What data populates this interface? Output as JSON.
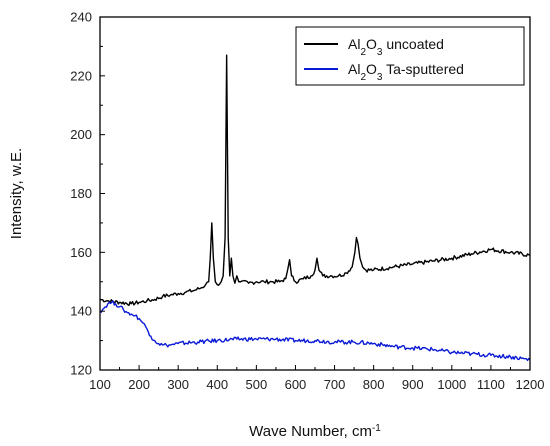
{
  "chart_data": {
    "type": "line",
    "xlabel": "Wave Number,  cm",
    "xlabel_superscript": "-1",
    "ylabel": "Intensity, w.E.",
    "xlim": [
      100,
      1200
    ],
    "ylim": [
      120,
      240
    ],
    "x_ticks": [
      100,
      200,
      300,
      400,
      500,
      600,
      700,
      800,
      900,
      1000,
      1100,
      1200
    ],
    "y_ticks": [
      120,
      140,
      160,
      180,
      200,
      220,
      240
    ],
    "grid": false,
    "legend_position": "top-right",
    "series": [
      {
        "name": "Al2O3 uncoated",
        "legend": {
          "base1": "Al",
          "sub1": "2",
          "base2": "O",
          "sub2": "3",
          "rest": " uncoated"
        },
        "color": "#000000",
        "x": [
          100,
          120,
          150,
          180,
          200,
          220,
          240,
          260,
          280,
          300,
          320,
          340,
          360,
          370,
          378,
          382,
          386,
          390,
          395,
          400,
          410,
          415,
          420,
          424,
          428,
          432,
          436,
          440,
          445,
          450,
          455,
          460,
          480,
          500,
          520,
          540,
          560,
          575,
          580,
          585,
          590,
          600,
          620,
          640,
          650,
          655,
          660,
          670,
          690,
          710,
          730,
          745,
          752,
          756,
          760,
          765,
          772,
          780,
          800,
          850,
          900,
          950,
          1000,
          1050,
          1100,
          1150,
          1200
        ],
        "y": [
          144,
          143.5,
          143,
          142.5,
          143,
          143.5,
          144,
          145,
          145.5,
          146,
          146.5,
          147,
          148,
          149,
          150,
          158,
          170,
          158,
          150,
          149,
          150,
          152,
          165,
          227,
          165,
          152,
          158,
          152,
          149.5,
          152,
          150,
          150,
          149.5,
          150,
          150,
          150,
          150,
          151,
          154,
          157.5,
          152,
          150,
          151,
          152,
          154,
          158,
          154,
          152,
          152,
          152,
          153,
          155,
          160,
          165,
          163,
          158,
          155,
          154,
          154,
          155,
          156,
          157,
          158,
          159.5,
          161,
          160,
          159
        ]
      },
      {
        "name": "Al2O3 Ta-sputtered",
        "legend": {
          "base1": "Al",
          "sub1": "2",
          "base2": "O",
          "sub2": "3",
          "rest": " Ta-sputtered"
        },
        "color": "#0a1ad6",
        "x": [
          100,
          110,
          120,
          130,
          140,
          150,
          160,
          170,
          180,
          190,
          200,
          210,
          220,
          230,
          240,
          250,
          260,
          270,
          280,
          300,
          350,
          400,
          450,
          500,
          550,
          600,
          650,
          700,
          750,
          800,
          850,
          900,
          950,
          1000,
          1050,
          1100,
          1150,
          1200
        ],
        "y": [
          140,
          141,
          142.5,
          143,
          142.5,
          141.5,
          140.5,
          139.5,
          139,
          138.5,
          137.5,
          136,
          134,
          131.5,
          130,
          129,
          128.5,
          128.5,
          128.5,
          129,
          129.5,
          130,
          130.5,
          130.5,
          130.5,
          130,
          130,
          129.5,
          129.5,
          129,
          128,
          127.5,
          127,
          126,
          125.5,
          125,
          124.5,
          123.5
        ]
      }
    ]
  }
}
